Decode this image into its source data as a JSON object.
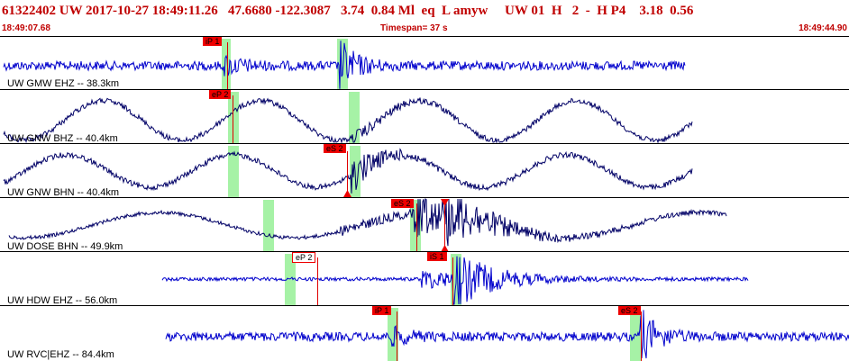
{
  "header": {
    "title": "61322402 UW 2017-10-27 18:49:11.26   47.6680 -122.3087   3.74  0.84 Ml  eq  L amyw     UW 01  H   2  -  H P4    3.18  0.56",
    "start_time": "18:49:07.68",
    "timespan": "Timespan=  37 s",
    "end_time": "18:49:44.90"
  },
  "traces": [
    {
      "label": "UW GMW EHZ -- 38.3km",
      "color": "#0000cc",
      "picks": [
        {
          "text": "iP 1",
          "style": "filled"
        }
      ]
    },
    {
      "label": "UW GNW BHZ -- 40.4km",
      "color": "#000066",
      "picks": [
        {
          "text": "eP 2",
          "style": "filled"
        }
      ]
    },
    {
      "label": "UW GNW BHN -- 40.4km",
      "color": "#000066",
      "picks": [
        {
          "text": "eS 2",
          "style": "filled"
        }
      ]
    },
    {
      "label": "UW DOSE BHN -- 49.9km",
      "color": "#000066",
      "picks": [
        {
          "text": "eS 2",
          "style": "filled"
        }
      ]
    },
    {
      "label": "UW HDW EHZ -- 56.0km",
      "color": "#0000cc",
      "picks": [
        {
          "text": "eP 2",
          "style": "outline"
        },
        {
          "text": "iS 1",
          "style": "filled"
        }
      ]
    },
    {
      "label": "UW RVC|EHZ -- 84.4km",
      "color": "#0000cc",
      "picks": [
        {
          "text": "iP 1",
          "style": "filled"
        },
        {
          "text": "eS 2",
          "style": "filled"
        }
      ]
    }
  ],
  "colors": {
    "header_text": "#c00000",
    "pick_marker": "#ee0000",
    "window_bar": "#a6f2a6"
  }
}
